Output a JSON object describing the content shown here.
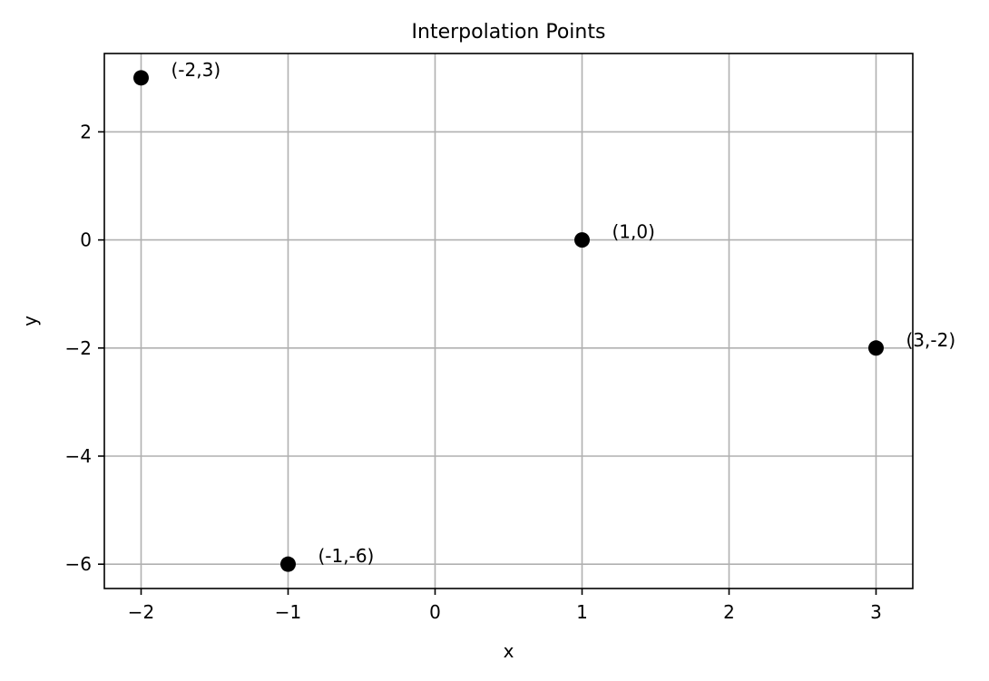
{
  "chart_data": {
    "type": "scatter",
    "title": "Interpolation Points",
    "xlabel": "x",
    "ylabel": "y",
    "xlim": [
      -2.25,
      3.25
    ],
    "ylim": [
      -6.45,
      3.45
    ],
    "xticks": [
      -2,
      -1,
      0,
      1,
      2,
      3
    ],
    "yticks": [
      -6,
      -4,
      -2,
      0,
      2
    ],
    "xtick_labels": [
      "−2",
      "−1",
      "0",
      "1",
      "2",
      "3"
    ],
    "ytick_labels": [
      "−6",
      "−4",
      "−2",
      "0",
      "2"
    ],
    "grid": true,
    "marker_color": "#000000",
    "points": [
      {
        "x": -2,
        "y": 3,
        "label": "(-2,3)"
      },
      {
        "x": -1,
        "y": -6,
        "label": "(-1,-6)"
      },
      {
        "x": 1,
        "y": 0,
        "label": "(1,0)"
      },
      {
        "x": 3,
        "y": -2,
        "label": "(3,-2)"
      }
    ]
  }
}
